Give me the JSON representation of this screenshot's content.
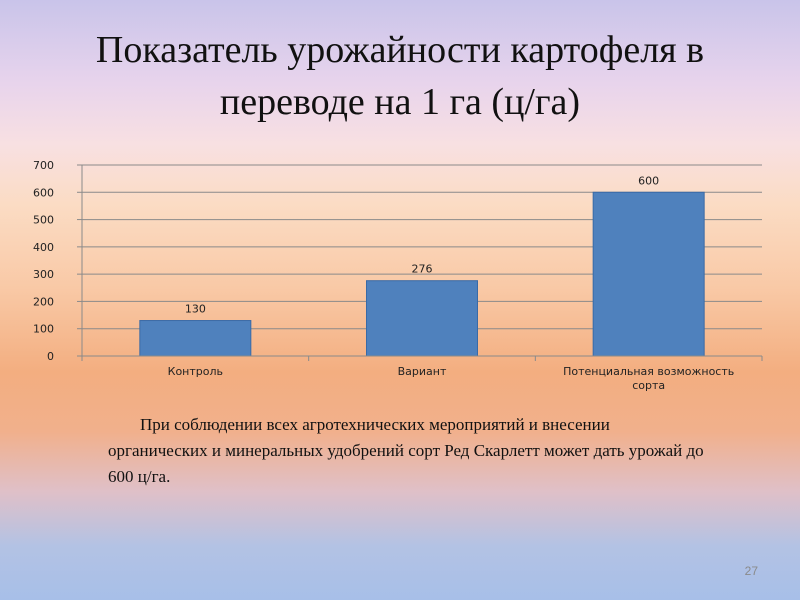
{
  "slide": {
    "title": "Показатель урожайности картофеля в переводе на 1 га (ц/га)",
    "paragraph": "При соблюдении всех агротехнических мероприятий и внесении органических и минеральных удобрений сорт Ред Скарлетт может дать урожай до 600 ц/га.",
    "page_number": "27"
  },
  "chart_data": {
    "type": "bar",
    "categories": [
      "Контроль",
      "Вариант",
      "Потенциальная возможность сорта"
    ],
    "category_lines": [
      [
        "Контроль"
      ],
      [
        "Вариант"
      ],
      [
        "Потенциальная возможность",
        "сорта"
      ]
    ],
    "values": [
      130,
      276,
      600
    ],
    "data_labels": [
      "130",
      "276",
      "600"
    ],
    "ylim": [
      0,
      700
    ],
    "yticks": [
      0,
      100,
      200,
      300,
      400,
      500,
      600,
      700
    ],
    "grid": true,
    "legend": "none",
    "bar_color": "#4f81bd"
  }
}
